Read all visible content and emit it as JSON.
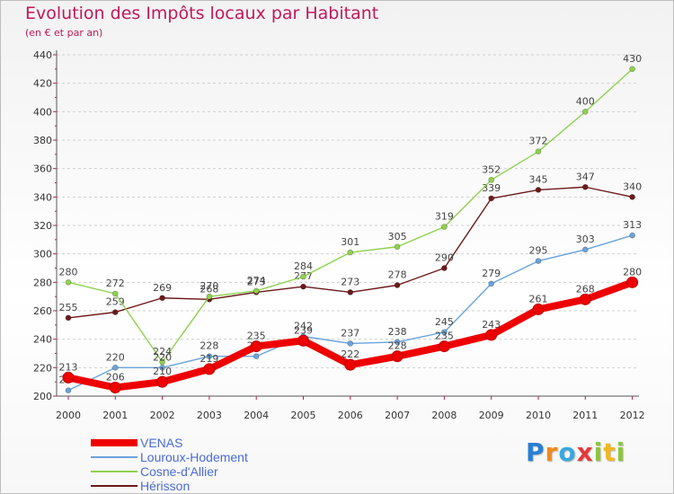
{
  "header": {
    "title": "Evolution des Impôts locaux par Habitant",
    "subtitle": "(en € et par an)"
  },
  "logo": {
    "text": "Proxiti",
    "letter_colors": [
      "#2a7fd6",
      "#f08a1c",
      "#3aa7e0",
      "#e23b3b",
      "#8cc63f",
      "#f0b81c",
      "#8cc63f"
    ]
  },
  "chart_data": {
    "type": "line",
    "title": "Evolution des Impôts locaux par Habitant",
    "subtitle": "(en € et par an)",
    "x": [
      2000,
      2001,
      2002,
      2003,
      2004,
      2005,
      2006,
      2007,
      2008,
      2009,
      2010,
      2011,
      2012
    ],
    "x_tick_labels": [
      "2000",
      "2001",
      "2002",
      "2003",
      "2004",
      "2005",
      "2006",
      "2007",
      "2008",
      "2009",
      "2010",
      "2011",
      "2012"
    ],
    "ylim": [
      200,
      440
    ],
    "y_ticks": [
      200,
      220,
      240,
      260,
      280,
      300,
      320,
      340,
      360,
      380,
      400,
      420,
      440
    ],
    "y_tick_labels": [
      "200",
      "220",
      "240",
      "260",
      "280",
      "300",
      "320",
      "340",
      "360",
      "380",
      "400",
      "420",
      "440"
    ],
    "grid": "horizontal dashed",
    "legend_position": "bottom-left",
    "series": [
      {
        "name": "Hérisson",
        "color": "#6b1a1a",
        "values": [
          255,
          259,
          269,
          268,
          273,
          277,
          273,
          278,
          290,
          339,
          345,
          347,
          340
        ],
        "labels": [
          "255",
          "259",
          "269",
          "268",
          "273",
          "277",
          "273",
          "278",
          "290",
          "339",
          "345",
          "347",
          "340"
        ]
      },
      {
        "name": "Cosne-d'Allier",
        "color": "#8fd14f",
        "values": [
          280,
          272,
          224,
          270,
          274,
          284,
          301,
          305,
          319,
          352,
          372,
          400,
          430
        ],
        "labels": [
          "280",
          "272",
          "224",
          "270",
          "274",
          "284",
          "301",
          "305",
          "319",
          "352",
          "372",
          "400",
          "430"
        ]
      },
      {
        "name": "Louroux-Hodement",
        "color": "#6aa3d9",
        "values": [
          204,
          220,
          220,
          228,
          228,
          242,
          237,
          238,
          245,
          279,
          295,
          303,
          313
        ],
        "labels": [
          "204",
          "220",
          "220",
          "228",
          "228",
          "242",
          "237",
          "238",
          "245",
          "279",
          "295",
          "303",
          "313"
        ]
      },
      {
        "name": "VENAS",
        "color": "#ee0000",
        "values": [
          213,
          206,
          210,
          219,
          235,
          239,
          222,
          228,
          235,
          243,
          261,
          268,
          280
        ],
        "labels": [
          "213",
          "206",
          "210",
          "219",
          "235",
          "239",
          "222",
          "228",
          "235",
          "243",
          "261",
          "268",
          "280"
        ]
      }
    ]
  },
  "legend": {
    "items": [
      {
        "label": "VENAS",
        "color": "#ee0000",
        "thick": true
      },
      {
        "label": "Louroux-Hodement",
        "color": "#6aa3d9",
        "thick": false
      },
      {
        "label": "Cosne-d'Allier",
        "color": "#8fd14f",
        "thick": false
      },
      {
        "label": "Hérisson",
        "color": "#6b1a1a",
        "thick": false
      }
    ]
  }
}
